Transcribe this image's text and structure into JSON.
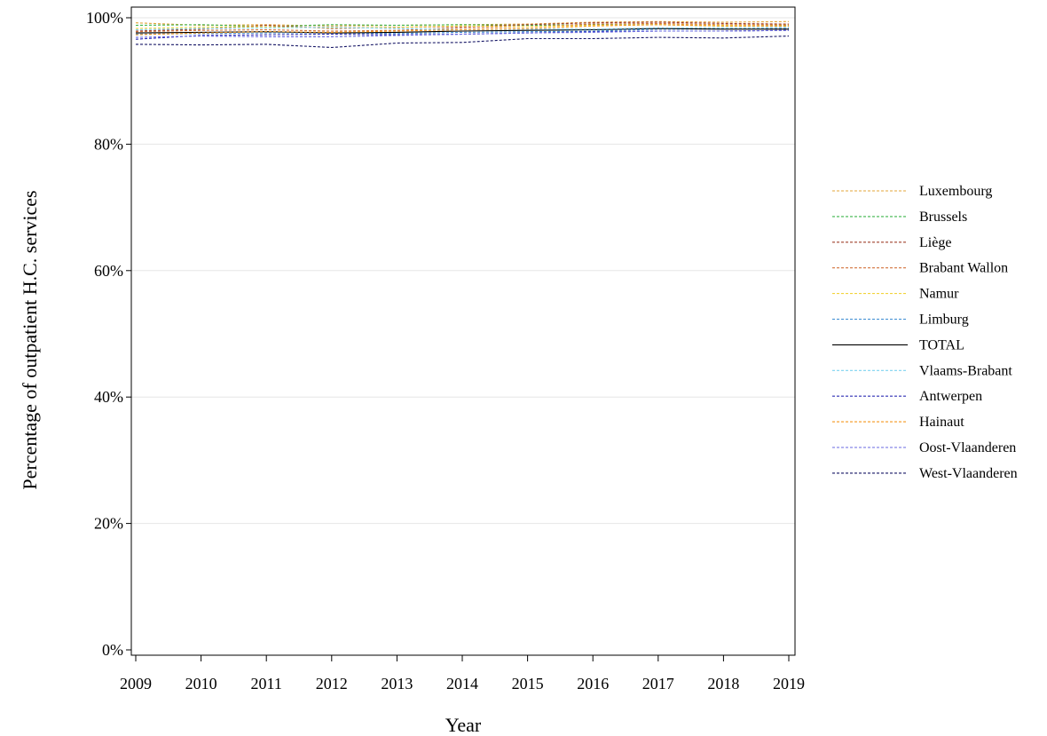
{
  "chart_data": {
    "type": "line",
    "title": "",
    "xlabel": "Year",
    "ylabel": "Percentage of outpatient H.C. services",
    "x": [
      2009,
      2010,
      2011,
      2012,
      2013,
      2014,
      2015,
      2016,
      2017,
      2018,
      2019
    ],
    "xlim": [
      2009,
      2019
    ],
    "ylim": [
      0,
      100
    ],
    "y_ticks": [
      0,
      20,
      40,
      60,
      80,
      100
    ],
    "y_tick_labels": [
      "0%",
      "20%",
      "40%",
      "60%",
      "80%",
      "100%"
    ],
    "grid": "horizontal",
    "legend_position": "right",
    "series": [
      {
        "name": "Luxembourg",
        "color": "#E3A43A",
        "dash": "dashed",
        "values": [
          99.2,
          98.8,
          98.9,
          98.7,
          98.8,
          98.9,
          99.0,
          99.3,
          99.4,
          99.3,
          99.4
        ]
      },
      {
        "name": "Brussels",
        "color": "#3CB44B",
        "dash": "dashed",
        "values": [
          98.8,
          98.9,
          98.6,
          98.9,
          98.8,
          98.9,
          98.8,
          98.9,
          98.9,
          98.7,
          98.8
        ]
      },
      {
        "name": "Liège",
        "color": "#A0412D",
        "dash": "dashed",
        "values": [
          97.9,
          98.2,
          98.8,
          98.3,
          98.5,
          98.6,
          98.9,
          99.2,
          99.3,
          99.1,
          99.0
        ]
      },
      {
        "name": "Brabant Wallon",
        "color": "#D2733C",
        "dash": "dashed",
        "values": [
          97.8,
          98.0,
          98.1,
          97.9,
          98.0,
          98.4,
          98.6,
          99.0,
          99.1,
          98.9,
          98.9
        ]
      },
      {
        "name": "Namur",
        "color": "#F2D33C",
        "dash": "dashed",
        "values": [
          98.3,
          98.5,
          98.6,
          98.4,
          98.5,
          98.7,
          98.6,
          98.8,
          98.9,
          98.8,
          98.7
        ]
      },
      {
        "name": "Limburg",
        "color": "#3C8CD2",
        "dash": "dashed",
        "values": [
          97.4,
          97.5,
          97.6,
          97.6,
          97.5,
          97.7,
          97.8,
          97.9,
          98.2,
          98.2,
          98.3
        ]
      },
      {
        "name": "TOTAL",
        "color": "#000000",
        "dash": "solid",
        "values": [
          97.6,
          97.7,
          97.8,
          97.6,
          97.7,
          97.9,
          98.0,
          98.1,
          98.3,
          98.2,
          98.2
        ]
      },
      {
        "name": "Vlaams-Brabant",
        "color": "#7FD2F0",
        "dash": "dashed",
        "values": [
          98.1,
          98.3,
          98.4,
          98.5,
          98.3,
          98.1,
          98.2,
          98.2,
          98.4,
          98.4,
          98.5
        ]
      },
      {
        "name": "Antwerpen",
        "color": "#2D2DB4",
        "dash": "dashed",
        "values": [
          96.6,
          97.2,
          97.3,
          97.4,
          97.3,
          97.4,
          97.6,
          97.8,
          97.9,
          97.9,
          98.0
        ]
      },
      {
        "name": "Hainaut",
        "color": "#F5961E",
        "dash": "dashed",
        "values": [
          97.3,
          97.6,
          97.8,
          97.7,
          97.9,
          98.1,
          98.3,
          98.7,
          98.9,
          98.7,
          98.7
        ]
      },
      {
        "name": "Oost-Vlaanderen",
        "color": "#6A6AE0",
        "dash": "dashed",
        "values": [
          96.9,
          97.1,
          97.0,
          97.0,
          97.2,
          97.4,
          97.6,
          97.7,
          97.9,
          97.9,
          98.0
        ]
      },
      {
        "name": "West-Vlaanderen",
        "color": "#141464",
        "dash": "dashed",
        "values": [
          95.8,
          95.7,
          95.8,
          95.3,
          96.0,
          96.1,
          96.7,
          96.7,
          96.9,
          96.8,
          97.1
        ]
      }
    ]
  }
}
